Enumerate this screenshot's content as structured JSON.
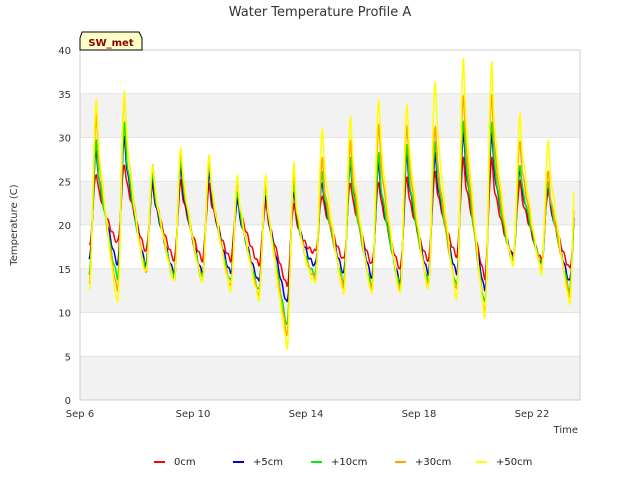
{
  "chart_data": {
    "type": "line",
    "title": "Water Temperature Profile A",
    "xlabel": "Time",
    "ylabel": "Temperature (C)",
    "site_label": "SW_met",
    "x_axis": {
      "start": "Sep 6",
      "end": "Sep 24",
      "range_days": [
        6.0,
        23.7
      ],
      "ticks": [
        {
          "day": 6,
          "label": "Sep 6"
        },
        {
          "day": 10,
          "label": "Sep 10"
        },
        {
          "day": 14,
          "label": "Sep 14"
        },
        {
          "day": 18,
          "label": "Sep 18"
        },
        {
          "day": 22,
          "label": "Sep 22"
        }
      ]
    },
    "ylim": [
      0,
      40
    ],
    "yticks": [
      0,
      5,
      10,
      15,
      20,
      25,
      30,
      35,
      40
    ],
    "grid": "horizontal alternating bands",
    "legend_position": "bottom",
    "daily_days": [
      6,
      7,
      8,
      9,
      10,
      11,
      12,
      13,
      14,
      15,
      16,
      17,
      18,
      19,
      20,
      21,
      22,
      23
    ],
    "series": [
      {
        "name": "0cm",
        "color": "#ff0000",
        "daily_min": [
          17.5,
          18.0,
          17.0,
          16.0,
          16.0,
          16.0,
          15.5,
          13.0,
          17.0,
          16.0,
          15.5,
          15.0,
          16.0,
          16.5,
          14.0,
          16.5,
          16.0,
          15.0
        ],
        "daily_max": [
          26.0,
          27.0,
          24.5,
          25.0,
          24.5,
          23.5,
          22.5,
          22.5,
          23.5,
          25.0,
          25.0,
          25.5,
          26.0,
          27.5,
          27.5,
          25.0,
          24.0,
          23.0
        ]
      },
      {
        "name": "+5cm",
        "color": "#0000cc",
        "daily_min": [
          16.0,
          15.5,
          15.5,
          14.5,
          14.5,
          14.5,
          13.5,
          11.0,
          15.5,
          14.5,
          14.0,
          13.5,
          14.5,
          14.5,
          12.5,
          16.5,
          15.5,
          13.5
        ],
        "daily_max": [
          28.5,
          30.0,
          25.0,
          26.5,
          26.0,
          23.0,
          23.5,
          24.0,
          25.0,
          27.0,
          27.0,
          28.0,
          28.0,
          30.5,
          30.5,
          26.5,
          24.5,
          24.5
        ]
      },
      {
        "name": "+10cm",
        "color": "#00ee00",
        "daily_min": [
          14.5,
          14.0,
          15.0,
          14.0,
          14.0,
          13.5,
          12.5,
          8.5,
          14.5,
          13.5,
          13.0,
          13.0,
          13.5,
          13.0,
          11.0,
          16.0,
          15.5,
          12.5
        ],
        "daily_max": [
          29.5,
          31.5,
          26.0,
          27.5,
          27.0,
          24.0,
          24.5,
          25.0,
          26.0,
          27.5,
          28.0,
          29.0,
          29.5,
          32.0,
          32.0,
          27.0,
          25.0,
          25.0
        ]
      },
      {
        "name": "+30cm",
        "color": "#ffa500",
        "daily_min": [
          13.5,
          12.5,
          14.5,
          13.5,
          13.5,
          13.0,
          12.0,
          7.5,
          14.0,
          13.0,
          12.5,
          12.5,
          13.0,
          12.5,
          10.0,
          16.0,
          15.0,
          12.0
        ],
        "daily_max": [
          32.5,
          35.0,
          27.0,
          28.5,
          27.5,
          25.0,
          25.0,
          26.0,
          27.5,
          29.5,
          31.5,
          31.5,
          31.5,
          35.0,
          35.0,
          29.5,
          26.0,
          27.0
        ]
      },
      {
        "name": "+50cm",
        "color": "#ffff00",
        "daily_min": [
          12.5,
          11.0,
          14.5,
          13.5,
          13.5,
          12.5,
          11.5,
          6.0,
          13.5,
          12.0,
          12.0,
          12.0,
          12.5,
          11.5,
          9.5,
          15.5,
          14.5,
          11.0
        ],
        "daily_max": [
          34.5,
          35.5,
          27.0,
          29.0,
          28.0,
          25.5,
          25.5,
          27.0,
          31.0,
          32.5,
          34.5,
          34.0,
          36.5,
          39.0,
          38.5,
          32.5,
          29.5,
          30.5
        ]
      }
    ]
  }
}
